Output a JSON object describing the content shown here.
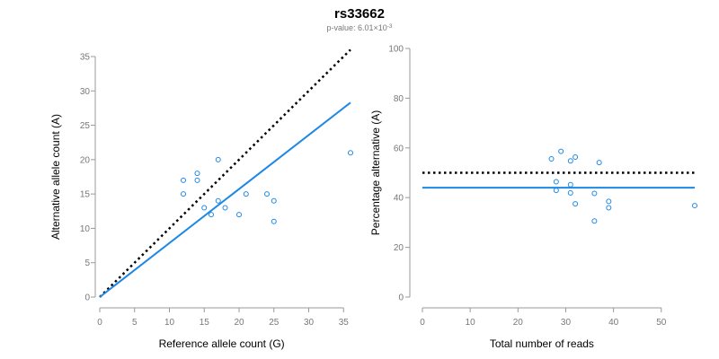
{
  "title": "rs33662",
  "subtitle": {
    "prefix": "p-value: 6.01×10",
    "exponent": "-3"
  },
  "colors": {
    "points": "#1E88E5",
    "fit_line": "#1E88E5",
    "reference_line": "#000000",
    "axis": "#999999",
    "tick_text": "#777777"
  },
  "chart_data": [
    {
      "type": "scatter",
      "xlabel": "Reference allele count (G)",
      "ylabel": "Alternative allele count (A)",
      "xlim": [
        0,
        36
      ],
      "ylim": [
        0,
        35
      ],
      "xticks": [
        0,
        5,
        10,
        15,
        20,
        25,
        30,
        35
      ],
      "yticks": [
        0,
        5,
        10,
        15,
        20,
        25,
        30,
        35
      ],
      "grid": false,
      "points": [
        {
          "x": 12,
          "y": 17
        },
        {
          "x": 12,
          "y": 15
        },
        {
          "x": 14,
          "y": 18
        },
        {
          "x": 14,
          "y": 17
        },
        {
          "x": 15,
          "y": 13
        },
        {
          "x": 16,
          "y": 12
        },
        {
          "x": 17,
          "y": 20
        },
        {
          "x": 17,
          "y": 14
        },
        {
          "x": 18,
          "y": 13
        },
        {
          "x": 20,
          "y": 12
        },
        {
          "x": 21,
          "y": 15
        },
        {
          "x": 24,
          "y": 15
        },
        {
          "x": 25,
          "y": 14
        },
        {
          "x": 25,
          "y": 11
        },
        {
          "x": 36,
          "y": 21
        }
      ],
      "lines": [
        {
          "style": "dotted",
          "color_key": "reference_line",
          "x": [
            0,
            36
          ],
          "y": [
            0,
            36
          ]
        },
        {
          "style": "solid",
          "color_key": "fit_line",
          "x": [
            0,
            36
          ],
          "y": [
            0,
            28.3
          ]
        }
      ]
    },
    {
      "type": "scatter",
      "xlabel": "Total number of reads",
      "ylabel": "Percentage alternative (A)",
      "xlim": [
        0,
        57
      ],
      "ylim": [
        0,
        100
      ],
      "xticks": [
        0,
        10,
        20,
        30,
        40,
        50
      ],
      "yticks": [
        0,
        20,
        40,
        60,
        80,
        100
      ],
      "grid": false,
      "points": [
        {
          "x": 27,
          "y": 55.6
        },
        {
          "x": 28,
          "y": 46.4
        },
        {
          "x": 28,
          "y": 42.9
        },
        {
          "x": 29,
          "y": 58.6
        },
        {
          "x": 31,
          "y": 54.8
        },
        {
          "x": 31,
          "y": 45.2
        },
        {
          "x": 31,
          "y": 41.9
        },
        {
          "x": 32,
          "y": 56.3
        },
        {
          "x": 32,
          "y": 37.5
        },
        {
          "x": 36,
          "y": 41.7
        },
        {
          "x": 36,
          "y": 30.6
        },
        {
          "x": 37,
          "y": 54.1
        },
        {
          "x": 39,
          "y": 38.5
        },
        {
          "x": 39,
          "y": 35.9
        },
        {
          "x": 57,
          "y": 36.8
        }
      ],
      "lines": [
        {
          "style": "dotted",
          "color_key": "reference_line",
          "x": [
            0,
            57
          ],
          "y": [
            50,
            50
          ]
        },
        {
          "style": "solid",
          "color_key": "fit_line",
          "x": [
            0,
            57
          ],
          "y": [
            44,
            44
          ]
        }
      ]
    }
  ]
}
